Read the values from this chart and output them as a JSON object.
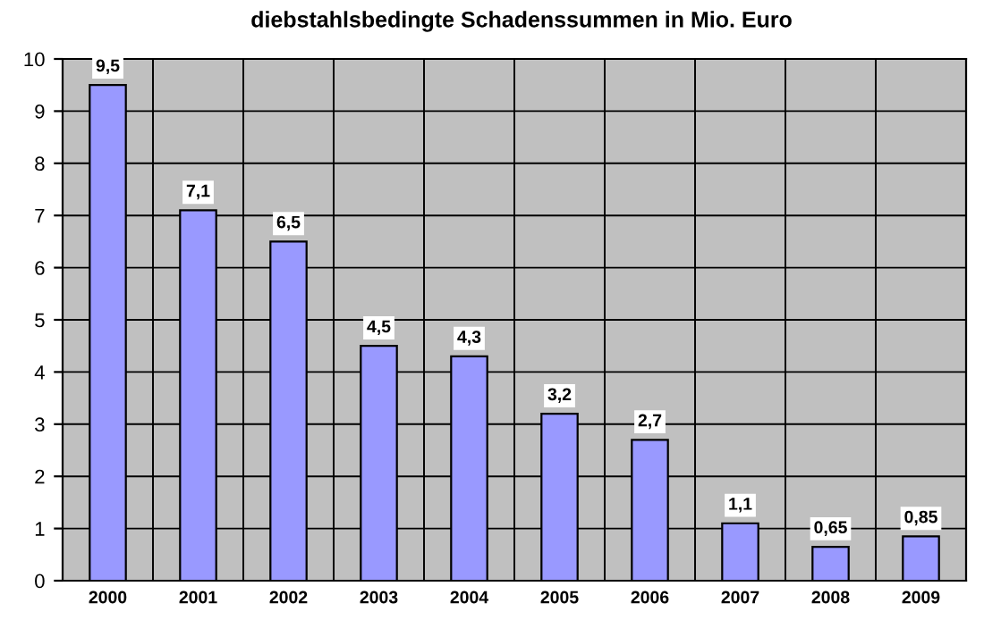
{
  "chart_data": {
    "type": "bar",
    "title": "diebstahlsbedingte Schadenssummen in Mio. Euro",
    "categories": [
      "2000",
      "2001",
      "2002",
      "2003",
      "2004",
      "2005",
      "2006",
      "2007",
      "2008",
      "2009"
    ],
    "values": [
      9.5,
      7.1,
      6.5,
      4.5,
      4.3,
      3.2,
      2.7,
      1.1,
      0.65,
      0.85
    ],
    "value_labels": [
      "9,5",
      "7,1",
      "6,5",
      "4,5",
      "4,3",
      "3,2",
      "2,7",
      "1,1",
      "0,65",
      "0,85"
    ],
    "color": "#9999ff",
    "ylim": [
      0,
      10
    ],
    "yticks": [
      0,
      1,
      2,
      3,
      4,
      5,
      6,
      7,
      8,
      9,
      10
    ],
    "grid": true
  }
}
